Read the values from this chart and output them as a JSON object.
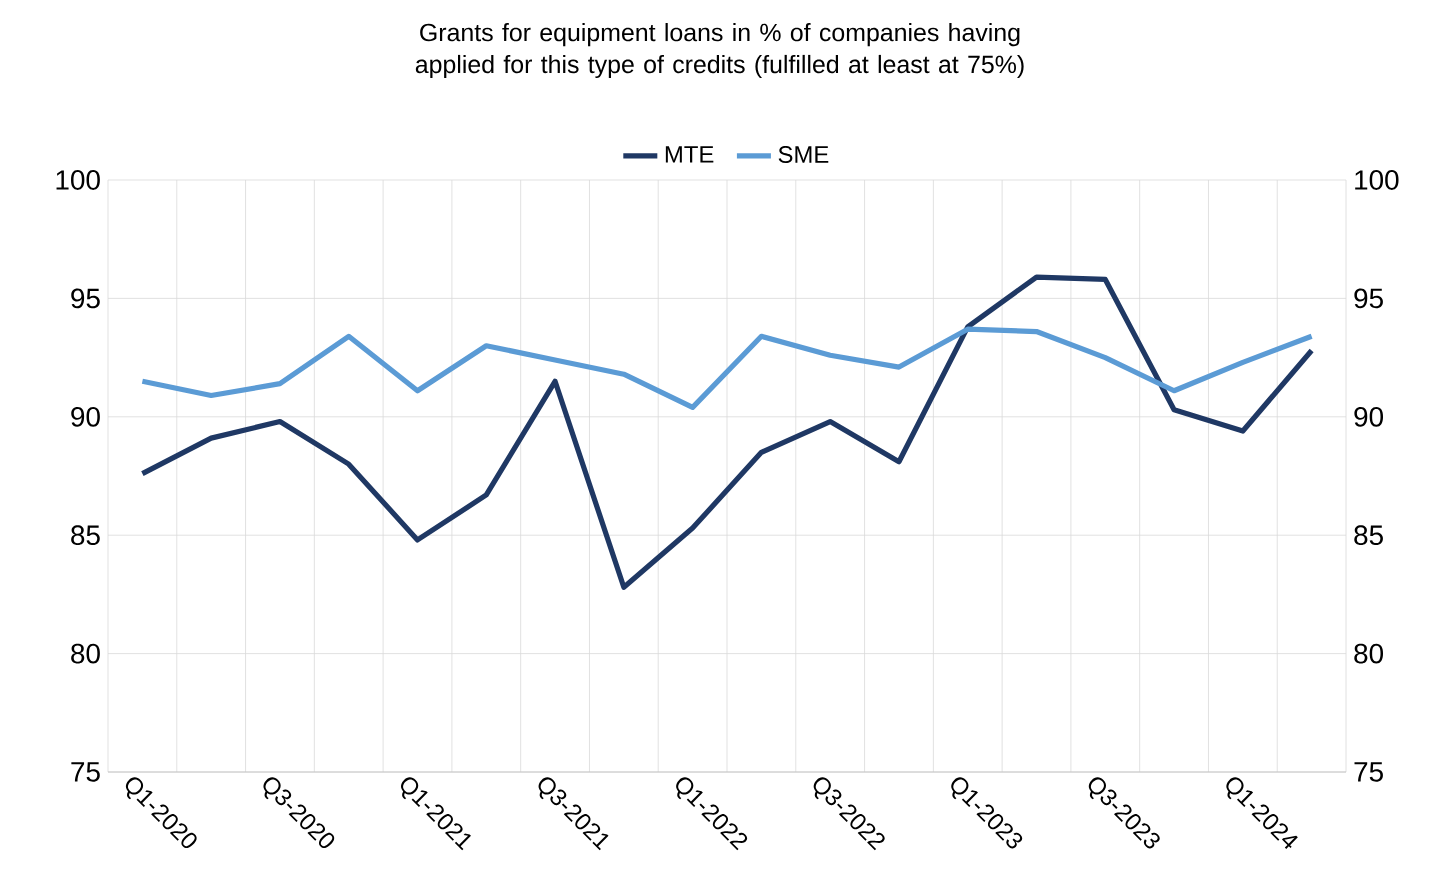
{
  "chart_data": {
    "type": "line",
    "title": "Grants for equipment  loans in % of companies having applied for this type of credits (fulfilled at least at 75%)",
    "categories": [
      "Q1-2020",
      null,
      "Q3-2020",
      null,
      "Q1-2021",
      null,
      "Q3-2021",
      null,
      "Q1-2022",
      null,
      "Q3-2022",
      null,
      "Q1-2023",
      null,
      "Q3-2023",
      null,
      "Q1-2024",
      null
    ],
    "series": [
      {
        "name": "MTE",
        "color": "#1f3864",
        "values": [
          87.6,
          89.1,
          89.8,
          88.0,
          84.8,
          86.7,
          91.5,
          82.8,
          85.3,
          88.5,
          89.8,
          88.1,
          93.8,
          95.9,
          95.8,
          90.3,
          89.4,
          92.8
        ]
      },
      {
        "name": "SME",
        "color": "#5b9bd5",
        "values": [
          91.5,
          90.9,
          91.4,
          93.4,
          91.1,
          93.0,
          92.4,
          91.8,
          90.4,
          93.4,
          92.6,
          92.1,
          93.7,
          93.6,
          92.5,
          91.1,
          92.3,
          93.4
        ]
      }
    ],
    "ylim": [
      75,
      100
    ],
    "yticks": [
      75,
      80,
      85,
      90,
      95,
      100
    ],
    "y2lim": [
      75,
      100
    ],
    "y2ticks": [
      75,
      80,
      85,
      90,
      95,
      100
    ],
    "grid": true,
    "legend": "top"
  }
}
